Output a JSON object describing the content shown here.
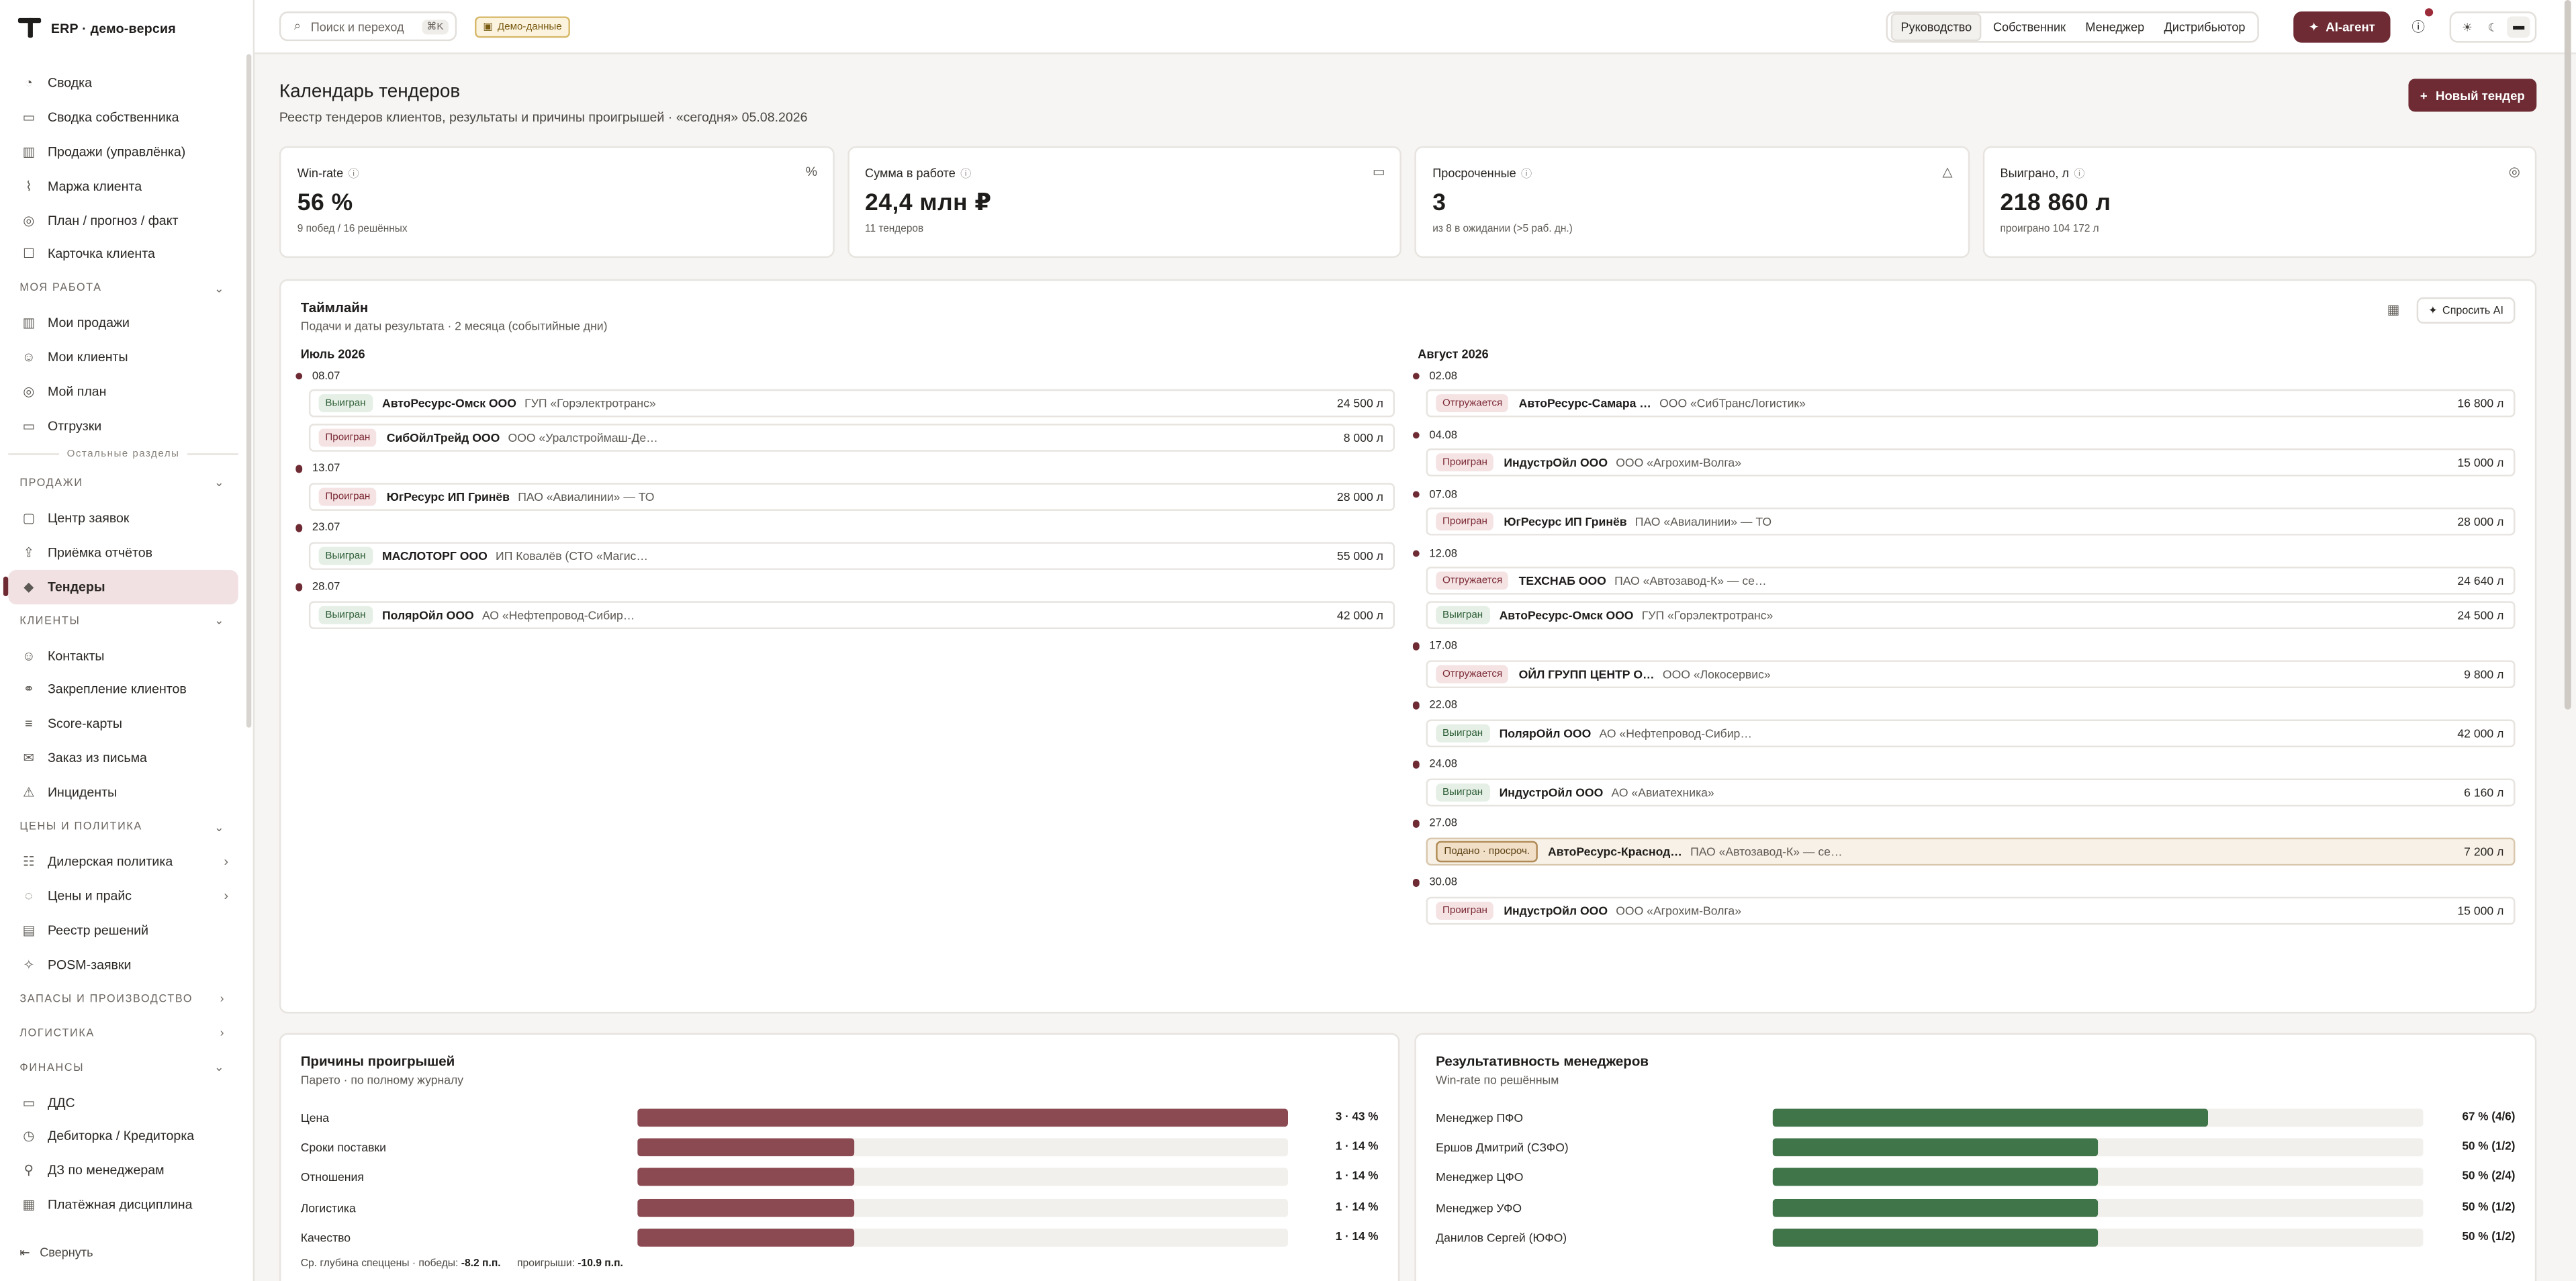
{
  "brand": {
    "name": "ERP · демо-версия"
  },
  "sidebar": {
    "top_items": [
      {
        "icon": "chart-pie-icon",
        "glyph": "◔",
        "label": "Сводка"
      },
      {
        "icon": "briefcase-icon",
        "glyph": "▭",
        "label": "Сводка собственника"
      },
      {
        "icon": "bar-chart-icon",
        "glyph": "▥",
        "label": "Продажи (управлёнка)"
      },
      {
        "icon": "margin-icon",
        "glyph": "⌇",
        "label": "Маржа клиента"
      },
      {
        "icon": "target-icon",
        "glyph": "◎",
        "label": "План / прогноз / факт"
      },
      {
        "icon": "user-card-icon",
        "glyph": "☐",
        "label": "Карточка клиента"
      }
    ],
    "my_work": {
      "title": "Моя работа",
      "items": [
        {
          "icon": "sales-icon",
          "glyph": "▥",
          "label": "Мои продажи"
        },
        {
          "icon": "users-icon",
          "glyph": "☺",
          "label": "Мои клиенты"
        },
        {
          "icon": "plan-icon",
          "glyph": "◎",
          "label": "Мой план"
        },
        {
          "icon": "truck-icon",
          "glyph": "▭",
          "label": "Отгрузки"
        }
      ]
    },
    "other_sections": "Остальные разделы",
    "sales": {
      "title": "Продажи",
      "items": [
        {
          "icon": "inbox-icon",
          "glyph": "▢",
          "label": "Центр заявок"
        },
        {
          "icon": "upload-icon",
          "glyph": "⇪",
          "label": "Приёмка отчётов"
        },
        {
          "icon": "tag-icon",
          "glyph": "◆",
          "label": "Тендеры"
        }
      ]
    },
    "clients": {
      "title": "Клиенты",
      "items": [
        {
          "icon": "contacts-icon",
          "glyph": "☺",
          "label": "Контакты"
        },
        {
          "icon": "link-icon",
          "glyph": "⚭",
          "label": "Закрепление клиентов"
        },
        {
          "icon": "scorecard-icon",
          "glyph": "≡",
          "label": "Score-карты"
        },
        {
          "icon": "mail-icon",
          "glyph": "✉",
          "label": "Заказ из письма"
        },
        {
          "icon": "alert-icon",
          "glyph": "⚠",
          "label": "Инциденты"
        }
      ]
    },
    "pricing": {
      "title": "Цены и политика",
      "items": [
        {
          "icon": "dealer-icon",
          "glyph": "☷",
          "label": "Дилерская политика",
          "chevron": "›"
        },
        {
          "icon": "price-icon",
          "glyph": "◌",
          "label": "Цены и прайс",
          "chevron": "›"
        },
        {
          "icon": "registry-icon",
          "glyph": "▤",
          "label": "Реестр решений"
        },
        {
          "icon": "posm-icon",
          "glyph": "✧",
          "label": "POSM-заявки"
        }
      ]
    },
    "stock": {
      "title": "Запасы и производство"
    },
    "logistics": {
      "title": "Логистика"
    },
    "finance": {
      "title": "Финансы",
      "items": [
        {
          "icon": "cashflow-icon",
          "glyph": "▭",
          "label": "ДДС"
        },
        {
          "icon": "debt-icon",
          "glyph": "◷",
          "label": "Дебиторка / Кредиторка"
        },
        {
          "icon": "manager-debt-icon",
          "glyph": "⚲",
          "label": "ДЗ по менеджерам"
        },
        {
          "icon": "calendar-icon",
          "glyph": "▦",
          "label": "Платёжная дисциплина"
        }
      ]
    },
    "collapse_label": "Свернуть"
  },
  "topbar": {
    "search_placeholder": "Поиск и переход",
    "search_kbd": "⌘K",
    "demo_badge": "Демо-данные",
    "roles": [
      "Руководство",
      "Собственник",
      "Менеджер",
      "Дистрибьютор"
    ],
    "active_role": "Руководство",
    "ai_agent": "AI-агент"
  },
  "page": {
    "title": "Календарь тендеров",
    "subtitle": "Реестр тендеров клиентов, результаты и причины проигрышей · «сегодня» 05.08.2026",
    "new_button": "Новый тендер"
  },
  "kpis": [
    {
      "label": "Win-rate",
      "icon": "percent-icon",
      "glyph": "%",
      "value": "56 %",
      "sub": "9 побед / 16 решённых"
    },
    {
      "label": "Сумма в работе",
      "icon": "folder-icon",
      "glyph": "▭",
      "value": "24,4 млн ₽",
      "sub": "11 тендеров"
    },
    {
      "label": "Просроченные",
      "icon": "warning-icon",
      "glyph": "△",
      "value": "3",
      "sub": "из 8 в ожидании (>5 раб. дн.)"
    },
    {
      "label": "Выиграно, л",
      "icon": "target-icon",
      "glyph": "◎",
      "value": "218 860 л",
      "sub": "проиграно 104 172 л"
    }
  ],
  "timeline": {
    "title": "Таймлайн",
    "subtitle": "Подачи и даты результата · 2 месяца (событийные дни)",
    "ask_ai": "Спросить AI",
    "months": [
      {
        "name": "Июль 2026",
        "days": [
          {
            "date": "08.07",
            "rows": [
              {
                "status": "Выигран",
                "kind": "won",
                "name": "АвтоРесурс-Омск ООО",
                "customer": "ГУП «Горэлектротранс»",
                "amount": "24 500 л"
              },
              {
                "status": "Проигран",
                "kind": "lost",
                "name": "СибОйлТрейд ООО",
                "customer": "ООО «Уралстроймаш-Де…",
                "amount": "8 000 л"
              }
            ]
          },
          {
            "date": "13.07",
            "rows": [
              {
                "status": "Проигран",
                "kind": "lost",
                "name": "ЮгРесурс ИП Гринёв",
                "customer": "ПАО «Авиалинии» — ТО",
                "amount": "28 000 л"
              }
            ]
          },
          {
            "date": "23.07",
            "rows": [
              {
                "status": "Выигран",
                "kind": "won",
                "name": "МАСЛОТОРГ ООО",
                "customer": "ИП Ковалёв (СТО «Магис…",
                "amount": "55 000 л"
              }
            ]
          },
          {
            "date": "28.07",
            "rows": [
              {
                "status": "Выигран",
                "kind": "won",
                "name": "ПолярОйл ООО",
                "customer": "АО «Нефтепровод-Сибир…",
                "amount": "42 000 л"
              }
            ]
          }
        ]
      },
      {
        "name": "Август 2026",
        "days": [
          {
            "date": "02.08",
            "rows": [
              {
                "status": "Отгружается",
                "kind": "rej",
                "name": "АвтоРесурс-Самара …",
                "customer": "ООО «СибТрансЛогистик»",
                "amount": "16 800 л"
              }
            ]
          },
          {
            "date": "04.08",
            "rows": [
              {
                "status": "Проигран",
                "kind": "lost",
                "name": "ИндустрОйл ООО",
                "customer": "ООО «Агрохим-Волга»",
                "amount": "15 000 л"
              }
            ]
          },
          {
            "date": "07.08",
            "rows": [
              {
                "status": "Проигран",
                "kind": "lost",
                "name": "ЮгРесурс ИП Гринёв",
                "customer": "ПАО «Авиалинии» — ТО",
                "amount": "28 000 л"
              }
            ]
          },
          {
            "date": "12.08",
            "rows": [
              {
                "status": "Отгружается",
                "kind": "rej",
                "name": "ТЕХСНАБ ООО",
                "customer": "ПАО «Автозавод-К» — се…",
                "amount": "24 640 л"
              },
              {
                "status": "Выигран",
                "kind": "won",
                "name": "АвтоРесурс-Омск ООО",
                "customer": "ГУП «Горэлектротранс»",
                "amount": "24 500 л"
              }
            ]
          },
          {
            "date": "17.08",
            "rows": [
              {
                "status": "Отгружается",
                "kind": "rej",
                "name": "ОЙЛ ГРУПП ЦЕНТР О…",
                "customer": "ООО «Локосервис»",
                "amount": "9 800 л"
              }
            ]
          },
          {
            "date": "22.08",
            "rows": [
              {
                "status": "Выигран",
                "kind": "won",
                "name": "ПолярОйл ООО",
                "customer": "АО «Нефтепровод-Сибир…",
                "amount": "42 000 л"
              }
            ]
          },
          {
            "date": "24.08",
            "rows": [
              {
                "status": "Выигран",
                "kind": "won",
                "name": "ИндустрОйл ООО",
                "customer": "АО «Авиатехника»",
                "amount": "6 160 л"
              }
            ]
          },
          {
            "date": "27.08",
            "rows": [
              {
                "status": "Подано · просроч.",
                "kind": "over",
                "name": "АвтоРесурс-Краснод…",
                "customer": "ПАО «Автозавод-К» — се…",
                "amount": "7 200 л"
              }
            ]
          },
          {
            "date": "30.08",
            "rows": [
              {
                "status": "Проигран",
                "kind": "lost",
                "name": "ИндустрОйл ООО",
                "customer": "ООО «Агрохим-Волга»",
                "amount": "15 000 л"
              }
            ]
          }
        ]
      }
    ]
  },
  "losses": {
    "title": "Причины проигрышей",
    "subtitle": "Парето · по полному журналу",
    "color": "#8b4a52",
    "rows": [
      {
        "label": "Цена",
        "fraction": 1.0,
        "value": "3 · 43 %"
      },
      {
        "label": "Сроки поставки",
        "fraction": 0.333,
        "value": "1 · 14 %"
      },
      {
        "label": "Отношения",
        "fraction": 0.333,
        "value": "1 · 14 %"
      },
      {
        "label": "Логистика",
        "fraction": 0.333,
        "value": "1 · 14 %"
      },
      {
        "label": "Качество",
        "fraction": 0.333,
        "value": "1 · 14 %"
      }
    ],
    "foot_label": "Ср. глубина спеццены · победы:",
    "foot_wins": "-8.2 п.п.",
    "foot_losses_label": "проигрыши:",
    "foot_losses": "-10.9 п.п."
  },
  "managers": {
    "title": "Результативность менеджеров",
    "subtitle": "Win-rate по решённым",
    "color": "#3f7548",
    "rows": [
      {
        "label": "Менеджер ПФО",
        "fraction": 0.67,
        "value": "67 % (4/6)"
      },
      {
        "label": "Ершов Дмитрий (СЗФО)",
        "fraction": 0.5,
        "value": "50 % (1/2)"
      },
      {
        "label": "Менеджер ЦФО",
        "fraction": 0.5,
        "value": "50 % (2/4)"
      },
      {
        "label": "Менеджер УФО",
        "fraction": 0.5,
        "value": "50 % (1/2)"
      },
      {
        "label": "Данилов Сергей (ЮФО)",
        "fraction": 0.5,
        "value": "50 % (1/2)"
      }
    ]
  }
}
